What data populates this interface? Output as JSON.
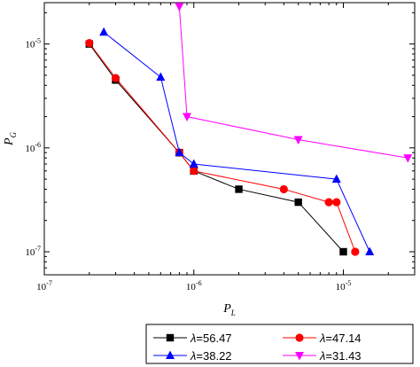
{
  "chart_data": {
    "type": "line",
    "xscale": "log",
    "yscale": "log",
    "xlim": [
      1e-07,
      3e-05
    ],
    "ylim": [
      6e-08,
      2.5e-05
    ],
    "xlabel": "P",
    "xlabel_sub": "L",
    "ylabel": "P",
    "ylabel_sub": "G",
    "x_tick_values": [
      1e-07,
      1e-06,
      1e-05
    ],
    "x_tick_labels": [
      {
        "base": "10",
        "exp": "-7"
      },
      {
        "base": "10",
        "exp": "-6"
      },
      {
        "base": "10",
        "exp": "-5"
      }
    ],
    "y_tick_values": [
      1e-07,
      1e-06,
      1e-05
    ],
    "y_tick_labels": [
      {
        "base": "10",
        "exp": "-7"
      },
      {
        "base": "10",
        "exp": "-6"
      },
      {
        "base": "10",
        "exp": "-5"
      }
    ],
    "grid": false,
    "legend_position": "bottom",
    "series": [
      {
        "name": "λ=56.47",
        "symbol": "λ",
        "value_text": "=56.47",
        "color": "#000000",
        "marker": "square",
        "points": [
          [
            2e-07,
            1e-05
          ],
          [
            3e-07,
            4.5e-06
          ],
          [
            8e-07,
            9e-07
          ],
          [
            1e-06,
            6e-07
          ],
          [
            2e-06,
            4e-07
          ],
          [
            5e-06,
            3e-07
          ],
          [
            1e-05,
            1e-07
          ]
        ]
      },
      {
        "name": "λ=47.14",
        "symbol": "λ",
        "value_text": "=47.14",
        "color": "#ff0000",
        "marker": "circle",
        "points": [
          [
            2e-07,
            1.02e-05
          ],
          [
            3e-07,
            4.7e-06
          ],
          [
            8e-07,
            9e-07
          ],
          [
            1e-06,
            6e-07
          ],
          [
            4e-06,
            4e-07
          ],
          [
            8e-06,
            3e-07
          ],
          [
            9e-06,
            3e-07
          ],
          [
            1.2e-05,
            1e-07
          ]
        ]
      },
      {
        "name": "λ=38.22",
        "symbol": "λ",
        "value_text": "=38.22",
        "color": "#0000ff",
        "marker": "triangle-up",
        "points": [
          [
            2.5e-07,
            1.3e-05
          ],
          [
            6e-07,
            4.8e-06
          ],
          [
            8e-07,
            9e-07
          ],
          [
            1e-06,
            7e-07
          ],
          [
            9e-06,
            5e-07
          ],
          [
            1.5e-05,
            1e-07
          ]
        ]
      },
      {
        "name": "λ=31.43",
        "symbol": "λ",
        "value_text": "=31.43",
        "color": "#ff00ff",
        "marker": "triangle-down",
        "points": [
          [
            8e-07,
            2.3e-05
          ],
          [
            9e-07,
            2e-06
          ],
          [
            5e-06,
            1.2e-06
          ],
          [
            2.7e-05,
            8e-07
          ]
        ]
      }
    ]
  }
}
